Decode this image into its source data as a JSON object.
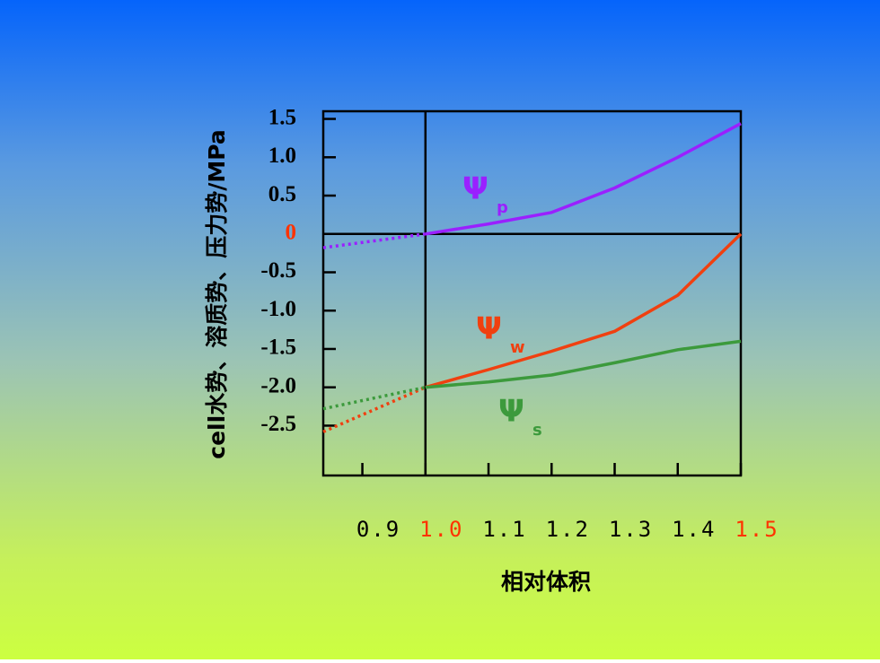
{
  "chart_data": {
    "type": "line",
    "x_label": "相对体积",
    "y_label": "cell水势、溶质势、压力势/MPa",
    "x": [
      0.838,
      1.0,
      1.1,
      1.2,
      1.3,
      1.4,
      1.5
    ],
    "series": [
      {
        "name": "Ψ",
        "subscript": "p",
        "color": "#9a20ff",
        "values": [
          -0.18,
          0,
          0.13,
          0.28,
          0.6,
          1.0,
          1.44
        ]
      },
      {
        "name": "Ψ",
        "subscript": "w",
        "color": "#f04010",
        "values": [
          -2.58,
          -2.0,
          -1.77,
          -1.53,
          -1.27,
          -0.8,
          0
        ]
      },
      {
        "name": "Ψ",
        "subscript": "s",
        "color": "#3c9a3c",
        "values": [
          -2.28,
          -2.0,
          -1.93,
          -1.84,
          -1.68,
          -1.51,
          -1.4
        ]
      }
    ],
    "dotted_x_max": 1.0,
    "xlim": [
      0.838,
      1.5
    ],
    "ylim": [
      -3.15,
      1.6
    ],
    "xticks": [
      0.9,
      {
        "value": 1,
        "label": "1.0"
      },
      1.1,
      1.2,
      1.3,
      1.4,
      1.5
    ],
    "xtick_colors": [
      "#000000",
      "#ff3300",
      "#000000",
      "#000000",
      "#000000",
      "#000000",
      "#ff3300"
    ],
    "yticks": [
      1.5,
      {
        "value": 1,
        "label": "1.0"
      },
      0.5,
      0,
      -0.5,
      {
        "value": -1,
        "label": "-1.0"
      },
      -1.5,
      {
        "value": -2,
        "label": "-2.0"
      },
      -2.5
    ],
    "ytick_colors": [
      "#000000",
      "#000000",
      "#000000",
      "#ff3300",
      "#000000",
      "#000000",
      "#000000",
      "#000000",
      "#000000"
    ],
    "vline": 1.0,
    "hline": 0
  }
}
